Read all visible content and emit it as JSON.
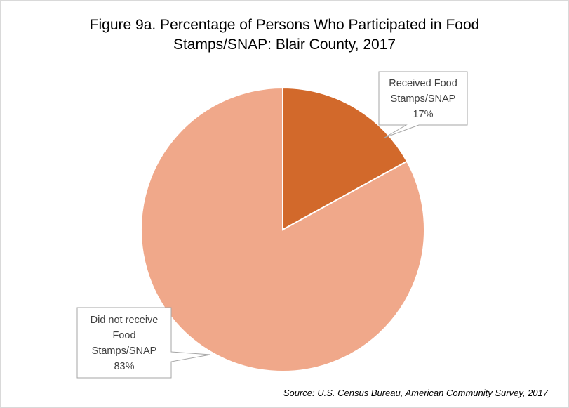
{
  "chart_data": {
    "type": "pie",
    "title_line1": "Figure 9a. Percentage of Persons Who Participated in Food",
    "title_line2": "Stamps/SNAP: Blair County, 2017",
    "slices": [
      {
        "label_lines": [
          "Received Food",
          "Stamps/SNAP"
        ],
        "value": 17,
        "value_label": "17%",
        "color": "#D2692B"
      },
      {
        "label_lines": [
          "Did not receive",
          "Food",
          "Stamps/SNAP"
        ],
        "value": 83,
        "value_label": "83%",
        "color": "#F0A88A"
      }
    ],
    "source": "Source: U.S. Census Bureau, American Community Survey, 2017"
  }
}
